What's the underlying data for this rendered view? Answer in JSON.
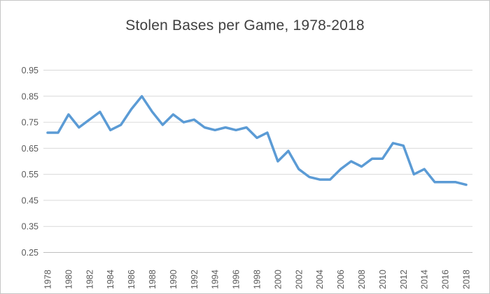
{
  "window": {
    "background": "#FFFFFF",
    "border_color": "#C6C6C6"
  },
  "chart_data": {
    "type": "line",
    "title": "Stolen Bases per Game, 1978-2018",
    "xlabel": "",
    "ylabel": "",
    "x": [
      1978,
      1979,
      1980,
      1981,
      1982,
      1983,
      1984,
      1985,
      1986,
      1987,
      1988,
      1989,
      1990,
      1991,
      1992,
      1993,
      1994,
      1995,
      1996,
      1997,
      1998,
      1999,
      2000,
      2001,
      2002,
      2003,
      2004,
      2005,
      2006,
      2007,
      2008,
      2009,
      2010,
      2011,
      2012,
      2013,
      2014,
      2015,
      2016,
      2017,
      2018
    ],
    "values": [
      0.71,
      0.71,
      0.78,
      0.73,
      0.76,
      0.79,
      0.72,
      0.74,
      0.8,
      0.85,
      0.79,
      0.74,
      0.78,
      0.75,
      0.76,
      0.73,
      0.72,
      0.73,
      0.72,
      0.73,
      0.69,
      0.71,
      0.6,
      0.64,
      0.57,
      0.54,
      0.53,
      0.53,
      0.57,
      0.6,
      0.58,
      0.61,
      0.61,
      0.67,
      0.66,
      0.55,
      0.57,
      0.52,
      0.52,
      0.52,
      0.51
    ],
    "x_tick_labels": [
      "1978",
      "1980",
      "1982",
      "1984",
      "1986",
      "1988",
      "1990",
      "1992",
      "1994",
      "1996",
      "1998",
      "2000",
      "2002",
      "2004",
      "2006",
      "2008",
      "2010",
      "2012",
      "2014",
      "2016",
      "2018"
    ],
    "y_tick_labels": [
      "0.95",
      "0.85",
      "0.75",
      "0.65",
      "0.55",
      "0.45",
      "0.35",
      "0.25"
    ],
    "ylim": [
      0.25,
      0.95
    ],
    "grid": true,
    "legend": false,
    "line_color": "#5B9BD5",
    "grid_color": "#D9D9D9",
    "axis_line_color": "#BFBFBF",
    "tick_label_color": "#595959",
    "title_color": "#404040"
  }
}
